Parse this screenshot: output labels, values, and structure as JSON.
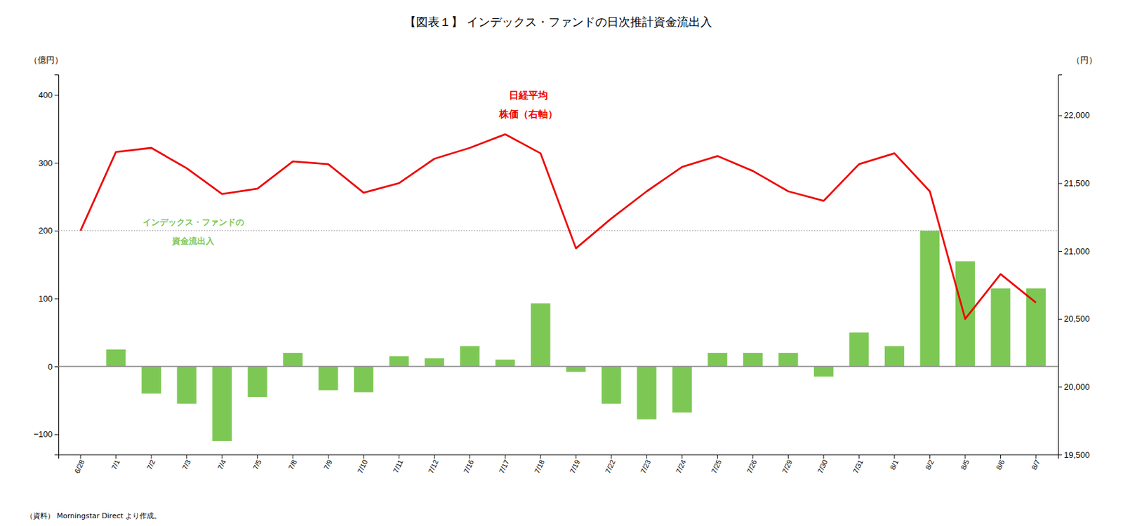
{
  "chart_data": {
    "type": "bar",
    "title": "【図表１】 インデックス・ファンドの日次推計資金流出入",
    "y_label": "（億円）",
    "y2_label": "（円）",
    "source": "（資料）  Morningstar Direct より作成。",
    "annotations": [
      {
        "text": "インデックス・ファンドの",
        "color": "#7dc855"
      },
      {
        "text": "資金流出入",
        "color": "#7dc855"
      },
      {
        "text": "日経平均",
        "color": "#ee0000"
      },
      {
        "text": "株価（右軸）",
        "color": "#ee0000"
      }
    ],
    "categories": [
      "6/28",
      "7/1",
      "7/2",
      "7/3",
      "7/4",
      "7/5",
      "7/8",
      "7/9",
      "7/10",
      "7/11",
      "7/12",
      "7/16",
      "7/17",
      "7/18",
      "7/19",
      "7/22",
      "7/23",
      "7/24",
      "7/25",
      "7/26",
      "7/29",
      "7/30",
      "7/31",
      "8/1",
      "8/2",
      "8/5",
      "8/6",
      "8/7"
    ],
    "series": [
      {
        "type": "bar",
        "color": "#7dc855",
        "values": [
          0,
          25,
          -40,
          -55,
          -110,
          -45,
          20,
          -35,
          -38,
          15,
          12,
          30,
          10,
          93,
          -8,
          -55,
          -78,
          -68,
          20,
          20,
          20,
          -15,
          50,
          30,
          200,
          155,
          115,
          115
        ]
      },
      {
        "type": "line",
        "color": "#ee0000",
        "axis": "y2",
        "values": [
          21150,
          21730,
          21760,
          21610,
          21420,
          21460,
          21660,
          21640,
          21430,
          21500,
          21680,
          21760,
          21860,
          21720,
          21020,
          21240,
          21440,
          21620,
          21700,
          21590,
          21440,
          21370,
          21640,
          21720,
          21440,
          20500,
          20830,
          20620
        ]
      }
    ],
    "reference_line": 200,
    "ylim": [
      -130,
      430
    ],
    "yticks": [
      -100,
      0,
      100,
      200,
      300,
      400
    ],
    "y2lim": [
      19500,
      22300
    ],
    "y2ticks": [
      {
        "value": 19500,
        "label": "19,500"
      },
      {
        "value": 20000,
        "label": "20,000"
      },
      {
        "value": 20500,
        "label": "20,500"
      },
      {
        "value": 21000,
        "label": "21,000"
      },
      {
        "value": 21500,
        "label": "21,500"
      },
      {
        "value": 22000,
        "label": "22,000"
      }
    ],
    "grid": false
  }
}
